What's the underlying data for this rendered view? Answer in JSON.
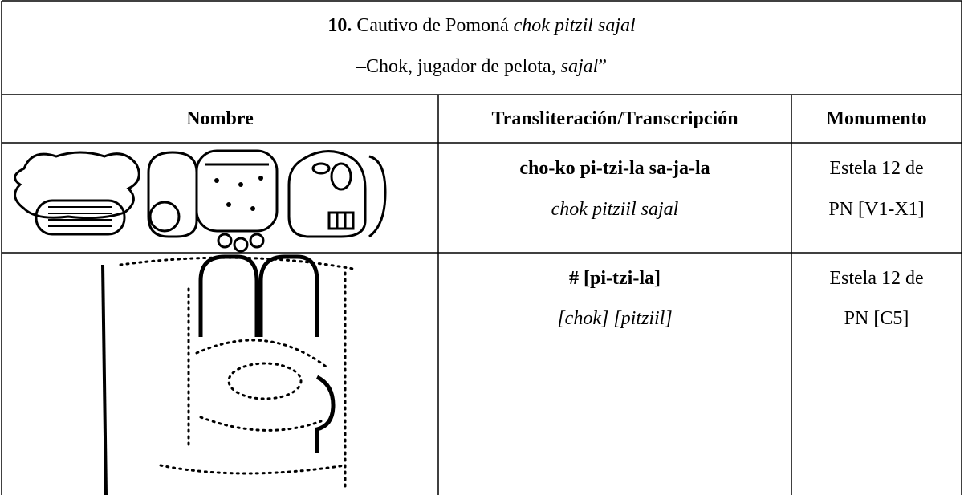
{
  "header": {
    "number": "10.",
    "title": "Cautivo de Pomoná ",
    "title_italic": "chok pitzil sajal",
    "subtitle": "–Chok, jugador de pelota, ",
    "subtitle_italic": "sajal",
    "subtitle_end": "”"
  },
  "table": {
    "columns": [
      "Nombre",
      "Transliteración/Transcripción",
      "Monumento"
    ],
    "rows": [
      {
        "transliteration": "cho-ko pi-tzi-la sa-ja-la",
        "transcription": "chok pitziil sajal",
        "monument": [
          "Estela 12 de",
          "PN [V1-X1]"
        ]
      },
      {
        "transliteration": "# [pi-tzi-la]",
        "transcription": "[chok] [pitziil]",
        "monument": [
          "Estela 12 de",
          "PN [C5]"
        ]
      }
    ]
  }
}
